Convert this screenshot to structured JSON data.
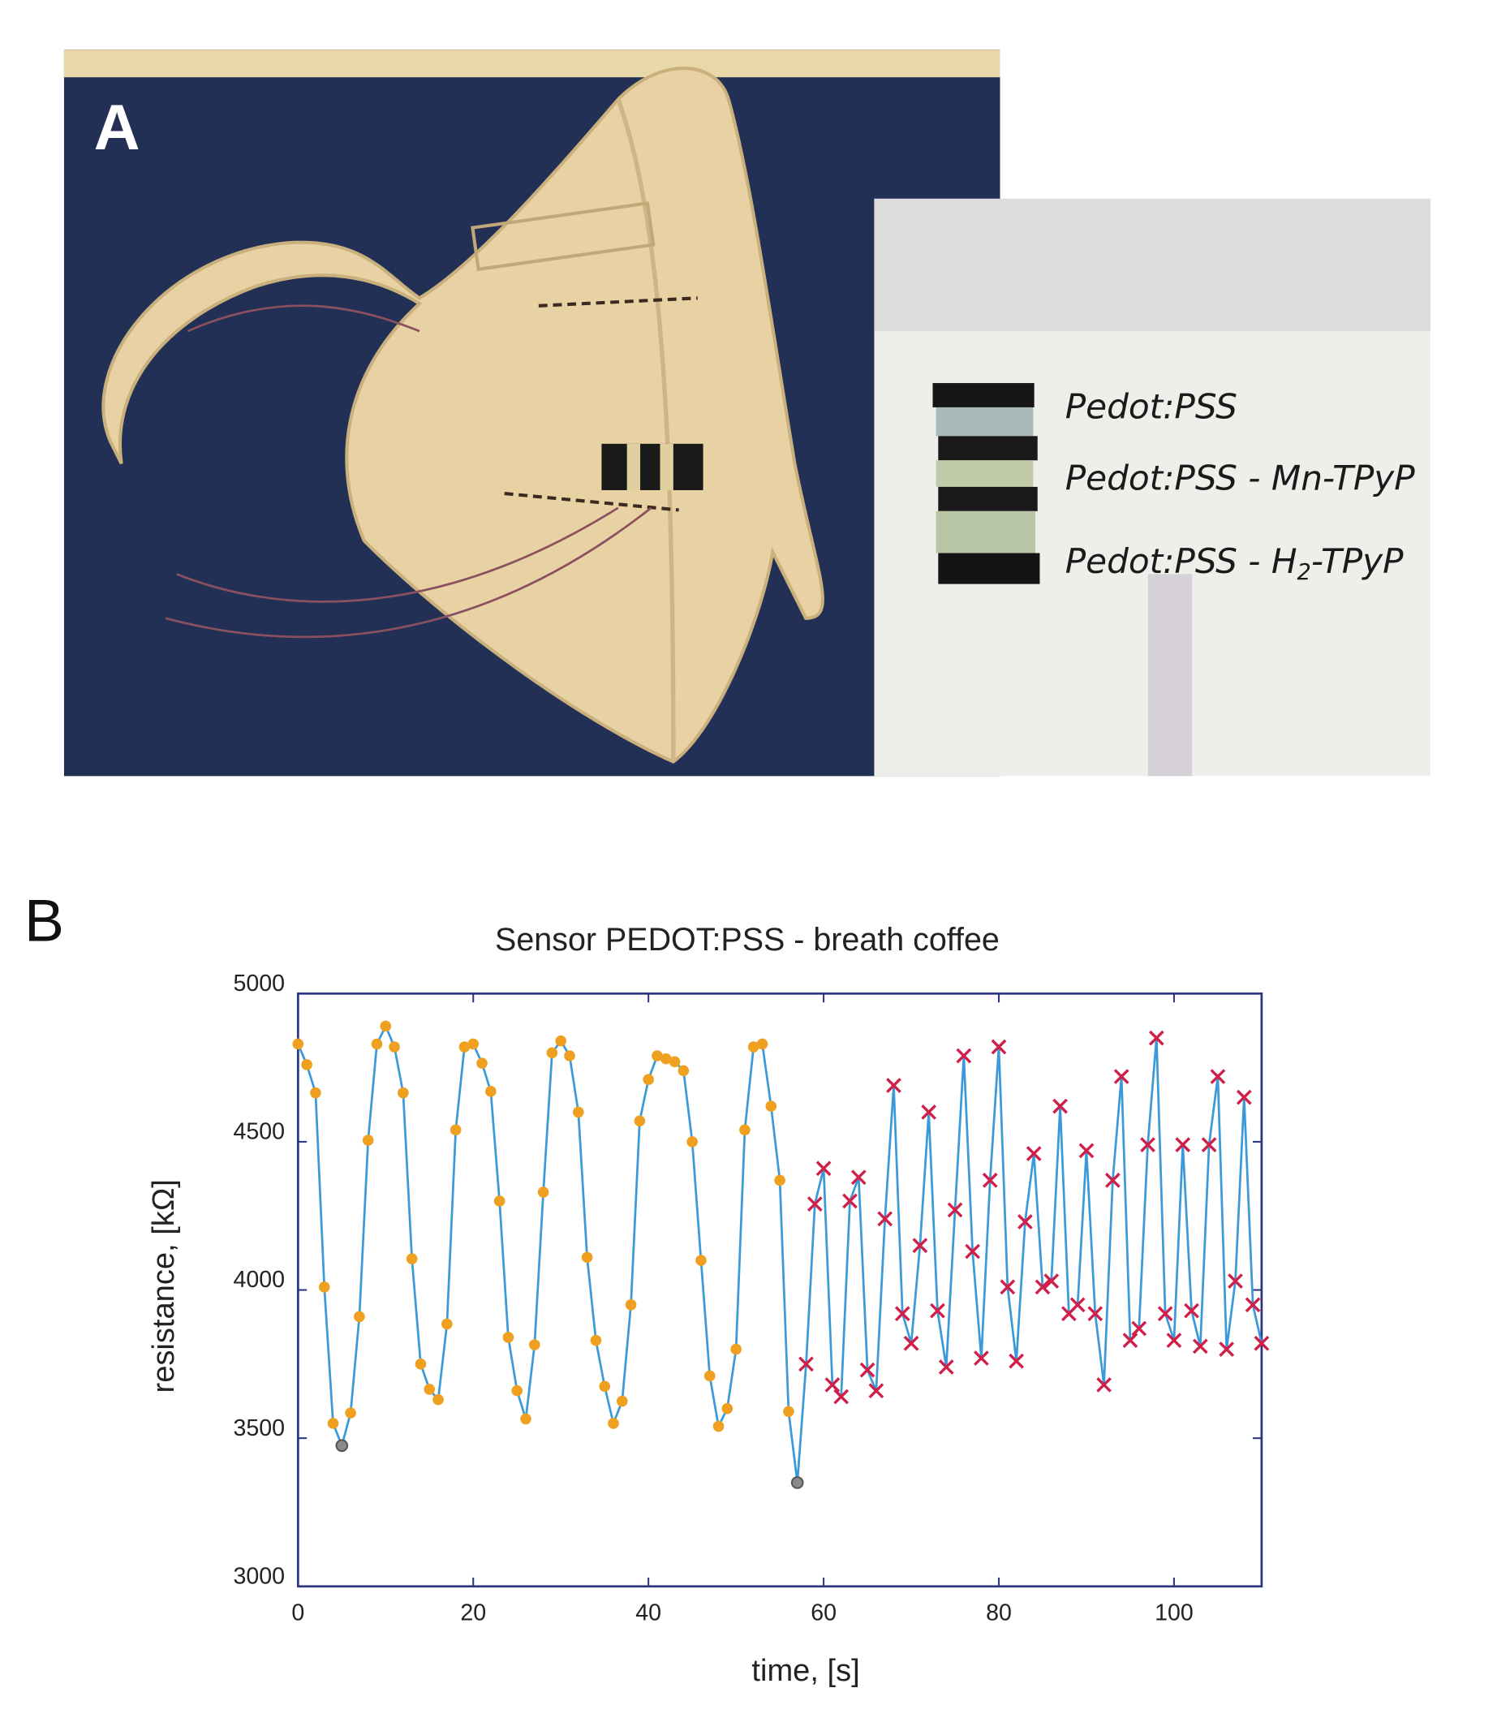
{
  "panel_a": {
    "label": "A",
    "inset_labels": [
      [
        "Pedot:PSS"
      ],
      [
        "Pedot:PSS - Mn-TPyP"
      ],
      [
        "Pedot:PSS - H",
        "2",
        "-TPyP"
      ]
    ]
  },
  "chart_data": {
    "type": "line",
    "panel_label": "B",
    "title": "Sensor PEDOT:PSS - breath coffee",
    "xlabel": "time, [s]",
    "ylabel": "resistance, [kΩ]",
    "xlim": [
      0,
      110
    ],
    "xticks": [
      0,
      20,
      40,
      60,
      80,
      100
    ],
    "ylim": [
      3000,
      5000
    ],
    "yticks": [
      3000,
      3500,
      4000,
      4500,
      5000
    ],
    "series": [
      {
        "color": "#3a9ad9",
        "marker": "none",
        "x": [
          0,
          1,
          2,
          3,
          4,
          5,
          6,
          7,
          8,
          9,
          10,
          11,
          12,
          13,
          14,
          15,
          16,
          17,
          18,
          19,
          20,
          21,
          22,
          23,
          24,
          25,
          26,
          27,
          28,
          29,
          30,
          31,
          32,
          33,
          34,
          35,
          36,
          37,
          38,
          39,
          40,
          41,
          42,
          43,
          44,
          45,
          46,
          47,
          48,
          49,
          50,
          51,
          52,
          53,
          54,
          55,
          56,
          57,
          58,
          59,
          60,
          61,
          62,
          63,
          64,
          65,
          66,
          67,
          68,
          69,
          70,
          71,
          72,
          73,
          74,
          75,
          76,
          77,
          78,
          79,
          80,
          81,
          82,
          83,
          84,
          85,
          86,
          87,
          88,
          89,
          90,
          91,
          92,
          93,
          94,
          95,
          96,
          97,
          98,
          99,
          100,
          101,
          102,
          103,
          104,
          105,
          106,
          107,
          108,
          109,
          110
        ],
        "values": [
          4830,
          4760,
          4665,
          4010,
          3550,
          3475,
          3585,
          3910,
          4505,
          4830,
          4890,
          4820,
          4665,
          4105,
          3750,
          3665,
          3630,
          3885,
          4540,
          4820,
          4830,
          4765,
          4670,
          4300,
          3840,
          3660,
          3565,
          3815,
          4330,
          4800,
          4840,
          4790,
          4600,
          4110,
          3830,
          3675,
          3550,
          3625,
          3950,
          4570,
          4710,
          4790,
          4780,
          4770,
          4740,
          4500,
          4100,
          3710,
          3540,
          3600,
          3800,
          4540,
          4820,
          4830,
          4620,
          4370,
          3590,
          3350,
          3750,
          4290,
          4410,
          3680,
          3640,
          4300,
          4380,
          3730,
          3660,
          4240,
          4690,
          3920,
          3820,
          4150,
          4600,
          3930,
          3740,
          4270,
          4790,
          4130,
          3770,
          4370,
          4820,
          4010,
          3760,
          4230,
          4460,
          4010,
          4030,
          4620,
          3920,
          3950,
          4470,
          3920,
          3680,
          4370,
          4720,
          3830,
          3870,
          4490,
          4850,
          3920,
          3830,
          4490,
          3930,
          3810,
          4490,
          4720,
          3800,
          4030,
          4650,
          3950,
          3820
        ]
      },
      {
        "color": "#f0a020",
        "marker": "circle",
        "x": [
          0,
          1,
          2,
          3,
          4,
          6,
          7,
          8,
          9,
          10,
          11,
          12,
          13,
          14,
          15,
          16,
          17,
          18,
          19,
          20,
          21,
          22,
          23,
          24,
          25,
          26,
          27,
          28,
          29,
          30,
          31,
          32,
          33,
          34,
          35,
          36,
          37,
          38,
          39,
          40,
          41,
          42,
          43,
          44,
          45,
          46,
          47,
          48,
          49,
          50,
          51,
          52,
          53,
          54,
          55,
          56
        ],
        "values": [
          4830,
          4760,
          4665,
          4010,
          3550,
          3585,
          3910,
          4505,
          4830,
          4890,
          4820,
          4665,
          4105,
          3750,
          3665,
          3630,
          3885,
          4540,
          4820,
          4830,
          4765,
          4670,
          4300,
          3840,
          3660,
          3565,
          3815,
          4330,
          4800,
          4840,
          4790,
          4600,
          4110,
          3830,
          3675,
          3550,
          3625,
          3950,
          4570,
          4710,
          4790,
          4780,
          4770,
          4740,
          4500,
          4100,
          3710,
          3540,
          3600,
          3800,
          4540,
          4820,
          4830,
          4620,
          4370,
          3590
        ]
      },
      {
        "color": "#8a8a8a",
        "marker": "circle",
        "x": [
          5,
          57
        ],
        "values": [
          3475,
          3350
        ]
      },
      {
        "color": "#d0204a",
        "marker": "x",
        "x": [
          58,
          59,
          60,
          61,
          62,
          63,
          64,
          65,
          66,
          67,
          68,
          69,
          70,
          71,
          72,
          73,
          74,
          75,
          76,
          77,
          78,
          79,
          80,
          81,
          82,
          83,
          84,
          85,
          86,
          87,
          88,
          89,
          90,
          91,
          92,
          93,
          94,
          95,
          96,
          97,
          98,
          99,
          100,
          101,
          102,
          103,
          104,
          105,
          106,
          107,
          108,
          109,
          110
        ],
        "values": [
          3750,
          4290,
          4410,
          3680,
          3640,
          4300,
          4380,
          3730,
          3660,
          4240,
          4690,
          3920,
          3820,
          4150,
          4600,
          3930,
          3740,
          4270,
          4790,
          4130,
          3770,
          4370,
          4820,
          4010,
          3760,
          4230,
          4460,
          4010,
          4030,
          4620,
          3920,
          3950,
          4470,
          3920,
          3680,
          4370,
          4720,
          3830,
          3870,
          4490,
          4850,
          3920,
          3830,
          4490,
          3930,
          3810,
          4490,
          4720,
          3800,
          4030,
          4650,
          3950,
          3820
        ]
      }
    ]
  }
}
